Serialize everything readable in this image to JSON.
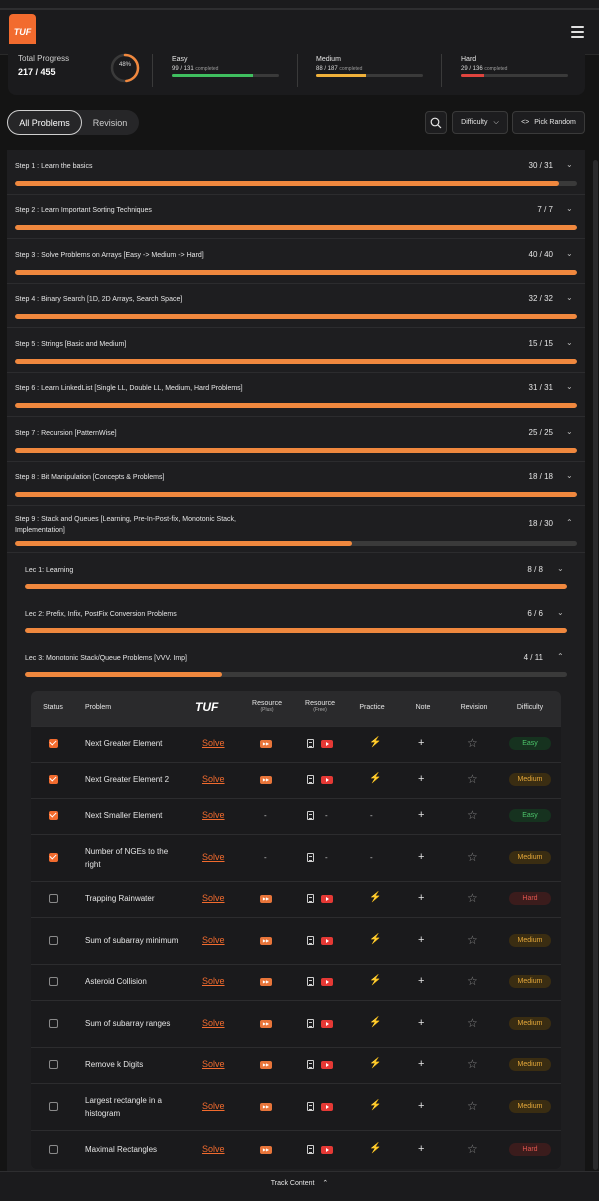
{
  "header": {
    "logo_text": "TUF",
    "menu_icon": "hamburger-menu-icon"
  },
  "progress": {
    "total_label": "Total Progress",
    "total_value": "217 / 455",
    "percent_text": "48%",
    "percent": 0.48,
    "levels": [
      {
        "name": "Easy",
        "count": "99 / 131",
        "suffix": "completed",
        "fraction": 0.756,
        "color": "#3fbf5f"
      },
      {
        "name": "Medium",
        "count": "88 / 187",
        "suffix": "completed",
        "fraction": 0.471,
        "color": "#f0b13a"
      },
      {
        "name": "Hard",
        "count": "29 / 136",
        "suffix": "completed",
        "fraction": 0.213,
        "color": "#e0443e"
      }
    ]
  },
  "tabs": {
    "all": "All Problems",
    "revision": "Revision"
  },
  "controls": {
    "difficulty": "Difficulty",
    "random": "Pick Random",
    "search_icon": "search-icon",
    "code_icon": "code-brackets-icon"
  },
  "steps": [
    {
      "title": "Step 1 : Learn the basics",
      "count": "30 / 31",
      "fraction": 0.968
    },
    {
      "title": "Step 2 : Learn Important Sorting Techniques",
      "count": "7 / 7",
      "fraction": 1
    },
    {
      "title": "Step 3 : Solve Problems on Arrays [Easy -> Medium -> Hard]",
      "count": "40 / 40",
      "fraction": 1
    },
    {
      "title": "Step 4 : Binary Search [1D, 2D Arrays, Search Space]",
      "count": "32 / 32",
      "fraction": 1
    },
    {
      "title": "Step 5 : Strings [Basic and Medium]",
      "count": "15 / 15",
      "fraction": 1
    },
    {
      "title": "Step 6 : Learn LinkedList [Single LL, Double LL, Medium, Hard Problems]",
      "count": "31 / 31",
      "fraction": 1
    },
    {
      "title": "Step 7 : Recursion [PatternWise]",
      "count": "25 / 25",
      "fraction": 1
    },
    {
      "title": "Step 8 : Bit Manipulation [Concepts & Problems]",
      "count": "18 / 18",
      "fraction": 1
    },
    {
      "title": "Step 9 : Stack and Queues [Learning, Pre-In-Post-fix, Monotonic Stack, Implementation]",
      "count": "18 / 30",
      "fraction": 0.6
    }
  ],
  "lectures": [
    {
      "title": "Lec 1: Learning",
      "count": "8 / 8",
      "fraction": 1
    },
    {
      "title": "Lec 2: Prefix, Infix, PostFix Conversion Problems",
      "count": "6 / 6",
      "fraction": 1
    },
    {
      "title": "Lec 3: Monotonic Stack/Queue Problems [VVV. Imp]",
      "count": "4 / 11",
      "fraction": 0.364
    }
  ],
  "table": {
    "headers": {
      "status": "Status",
      "problem": "Problem",
      "tuf": "TUF",
      "res_plus": "Resource",
      "res_plus_sub": "(Plus)",
      "res_free": "Resource",
      "res_free_sub": "(Free)",
      "practice": "Practice",
      "note": "Note",
      "revision": "Revision",
      "difficulty": "Difficulty"
    },
    "solve_label": "Solve",
    "dash": "-",
    "rows": [
      {
        "name": "Next Greater Element",
        "done": true,
        "plus": true,
        "doc": true,
        "yt": true,
        "practice": true,
        "difficulty": "Easy"
      },
      {
        "name": "Next Greater Element 2",
        "done": true,
        "plus": true,
        "doc": true,
        "yt": true,
        "practice": true,
        "difficulty": "Medium"
      },
      {
        "name": "Next Smaller Element",
        "done": true,
        "plus": false,
        "doc": true,
        "yt": false,
        "practice": false,
        "difficulty": "Easy"
      },
      {
        "name": "Number of NGEs to the right",
        "done": true,
        "plus": false,
        "doc": true,
        "yt": false,
        "practice": false,
        "difficulty": "Medium"
      },
      {
        "name": "Trapping Rainwater",
        "done": false,
        "plus": true,
        "doc": true,
        "yt": true,
        "practice": true,
        "difficulty": "Hard"
      },
      {
        "name": "Sum of subarray minimum",
        "done": false,
        "plus": true,
        "doc": true,
        "yt": true,
        "practice": true,
        "difficulty": "Medium"
      },
      {
        "name": "Asteroid Collision",
        "done": false,
        "plus": true,
        "doc": true,
        "yt": true,
        "practice": true,
        "difficulty": "Medium"
      },
      {
        "name": "Sum of subarray ranges",
        "done": false,
        "plus": true,
        "doc": true,
        "yt": true,
        "practice": true,
        "difficulty": "Medium"
      },
      {
        "name": "Remove k Digits",
        "done": false,
        "plus": true,
        "doc": true,
        "yt": true,
        "practice": true,
        "difficulty": "Medium"
      },
      {
        "name": "Largest rectangle in a histogram",
        "done": false,
        "plus": true,
        "doc": true,
        "yt": true,
        "practice": true,
        "difficulty": "Medium"
      },
      {
        "name": "Maximal Rectangles",
        "done": false,
        "plus": true,
        "doc": true,
        "yt": true,
        "practice": true,
        "difficulty": "Hard"
      }
    ]
  },
  "footer": {
    "label": "Track Content"
  }
}
